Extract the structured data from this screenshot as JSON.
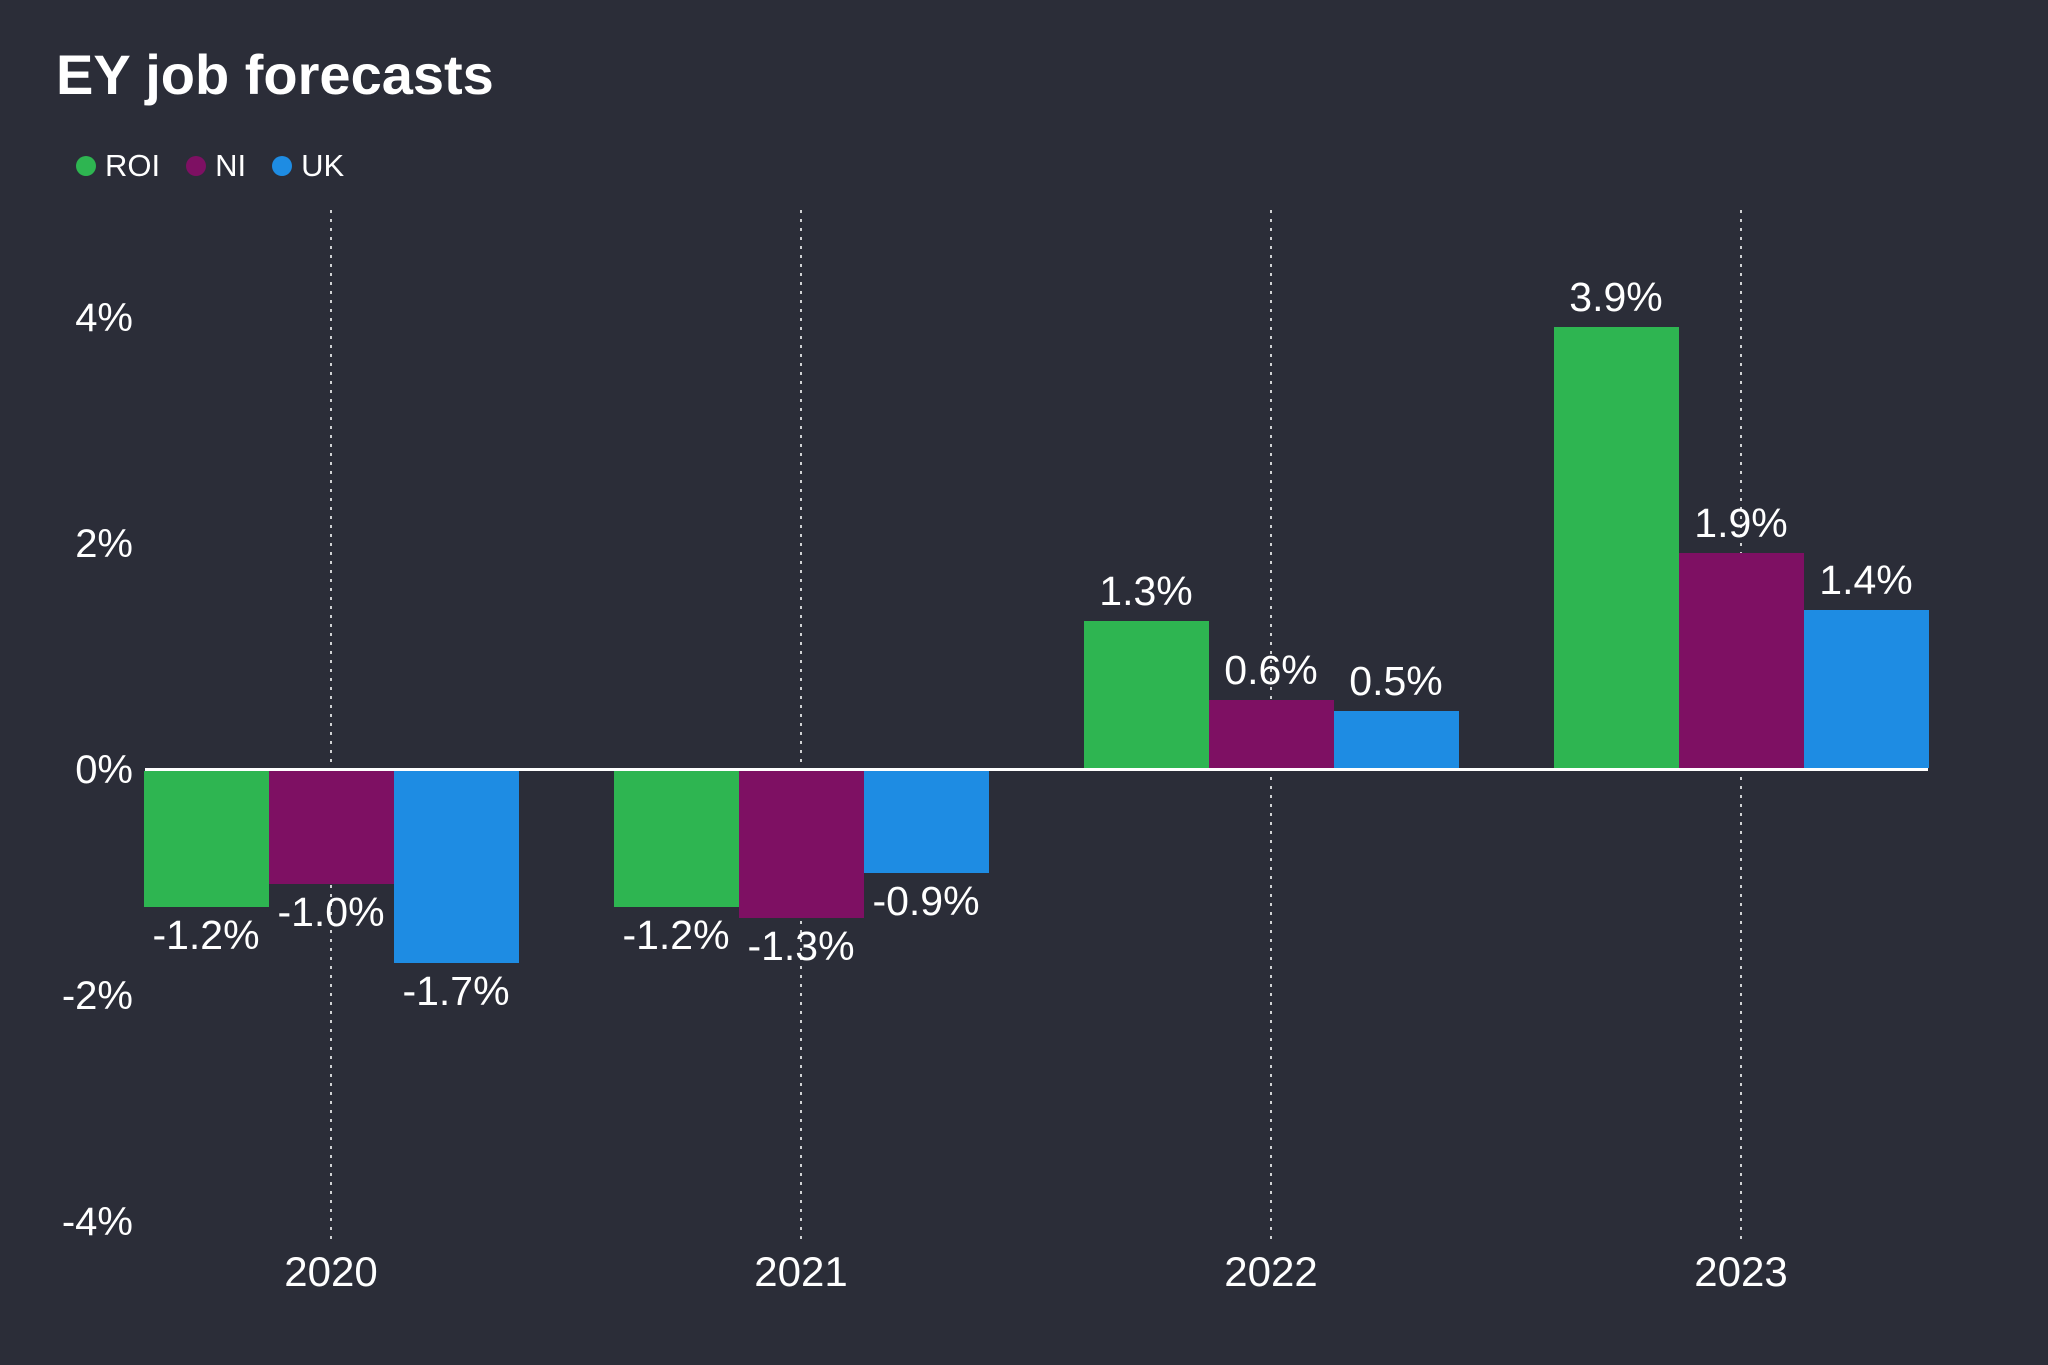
{
  "title": "EY job forecasts",
  "legend": {
    "items": [
      {
        "label": "ROI",
        "color": "#2eb551"
      },
      {
        "label": "NI",
        "color": "#7e1063"
      },
      {
        "label": "UK",
        "color": "#1e8ce3"
      }
    ]
  },
  "chart_data": {
    "type": "bar",
    "title": "EY job forecasts",
    "categories": [
      "2020",
      "2021",
      "2022",
      "2023"
    ],
    "series": [
      {
        "name": "ROI",
        "color": "#2eb551",
        "values": [
          -1.2,
          -1.2,
          1.3,
          3.9
        ],
        "labels": [
          "-1.2%",
          "-1.2%",
          "1.3%",
          "3.9%"
        ]
      },
      {
        "name": "NI",
        "color": "#7e1063",
        "values": [
          -1.0,
          -1.3,
          0.6,
          1.9
        ],
        "labels": [
          "-1.0%",
          "-1.3%",
          "0.6%",
          "1.9%"
        ]
      },
      {
        "name": "UK",
        "color": "#1e8ce3",
        "values": [
          -1.7,
          -0.9,
          0.5,
          1.4
        ],
        "labels": [
          "-1.7%",
          "-0.9%",
          "0.5%",
          "1.4%"
        ]
      }
    ],
    "xlabel": "",
    "ylabel": "",
    "ylim": [
      -4,
      4
    ],
    "yticks": [
      {
        "value": 4,
        "label": "4%"
      },
      {
        "value": 2,
        "label": "2%"
      },
      {
        "value": 0,
        "label": "0%"
      },
      {
        "value": -2,
        "label": "-2%"
      },
      {
        "value": -4,
        "label": "-4%"
      }
    ],
    "grid": "vertical-dotted-at-category-centers",
    "legend_position": "top-left",
    "value_labels": "outside-bar-ends"
  },
  "colors": {
    "background": "#2b2d38",
    "text": "#ffffff",
    "zero_line": "#ffffff",
    "gridline": "rgba(255,255,255,0.78)"
  }
}
